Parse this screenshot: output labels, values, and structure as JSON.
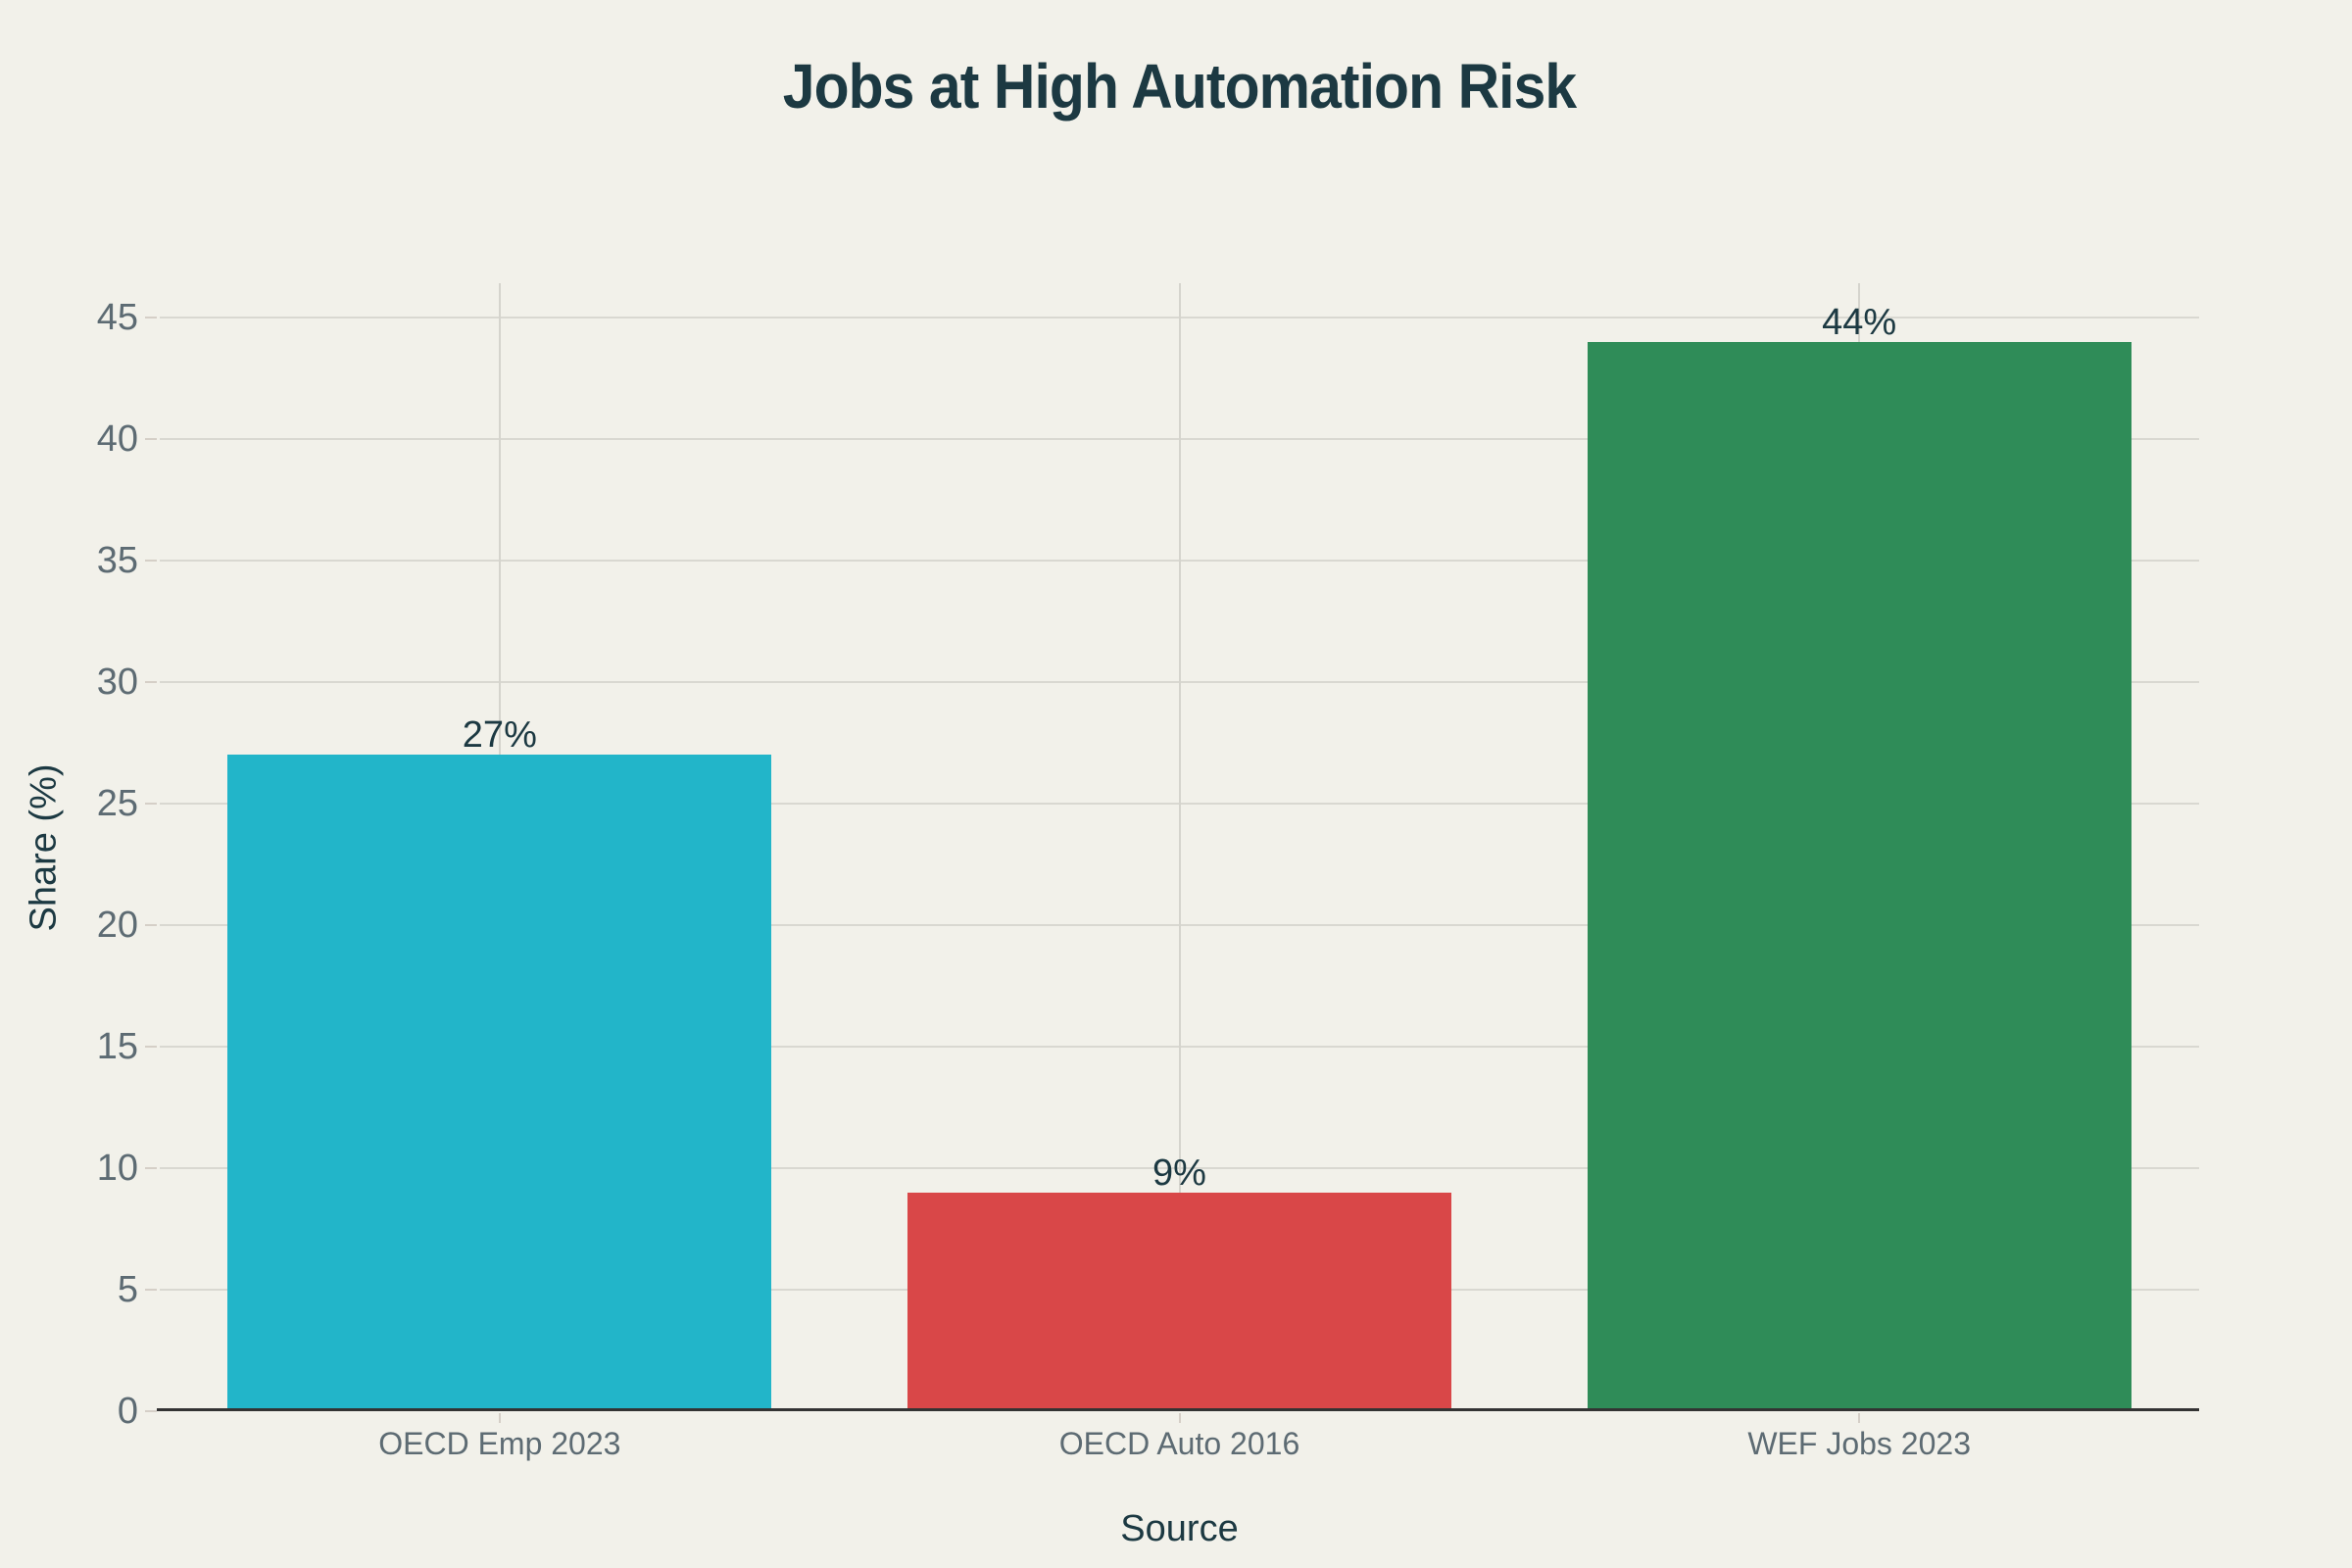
{
  "chart_data": {
    "type": "bar",
    "title": "Jobs at High Automation Risk",
    "xlabel": "Source",
    "ylabel": "Share (%)",
    "categories": [
      "OECD Emp 2023",
      "OECD Auto 2016",
      "WEF Jobs 2023"
    ],
    "values": [
      27,
      9,
      44
    ],
    "value_labels": [
      "27%",
      "9%",
      "44%"
    ],
    "bar_colors": [
      "#22b5c9",
      "#d94748",
      "#2f8c58"
    ],
    "ylim": [
      0,
      46.4
    ],
    "y_ticks": [
      0,
      5,
      10,
      15,
      20,
      25,
      30,
      35,
      40,
      45
    ],
    "grid": true,
    "legend": "none",
    "colors": {
      "background": "#f2f1ea",
      "title_text": "#1c3942",
      "tick_text": "#5d6b73",
      "gridline": "#d9d8d1",
      "axis_line": "#333333"
    }
  }
}
